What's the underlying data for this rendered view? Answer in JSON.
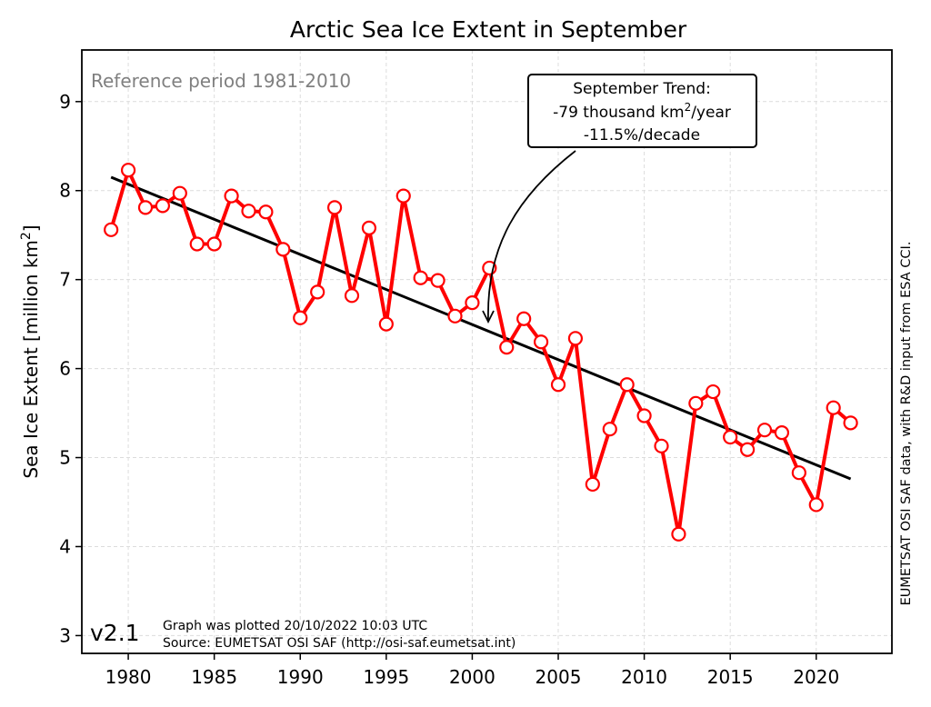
{
  "chart_data": {
    "type": "line",
    "title": "Arctic Sea Ice Extent in September",
    "xlabel": "",
    "ylabel_main": "Sea Ice Extent [million km",
    "ylabel_sup": "2",
    "ylabel_end": "]",
    "xlim": [
      1977.3,
      2024.4
    ],
    "ylim": [
      2.8,
      9.58
    ],
    "grid": true,
    "x_ticks": [
      1980,
      1985,
      1990,
      1995,
      2000,
      2005,
      2010,
      2015,
      2020
    ],
    "x_tick_labels": [
      "1980",
      "1985",
      "1990",
      "1995",
      "2000",
      "2005",
      "2010",
      "2015",
      "2020"
    ],
    "y_ticks": [
      3,
      4,
      5,
      6,
      7,
      8,
      9
    ],
    "y_tick_labels": [
      "3",
      "4",
      "5",
      "6",
      "7",
      "8",
      "9"
    ],
    "series": [
      {
        "name": "September sea ice extent",
        "color": "#ff0000",
        "marker": "open-circle",
        "x": [
          1979,
          1980,
          1981,
          1982,
          1983,
          1984,
          1985,
          1986,
          1987,
          1988,
          1989,
          1990,
          1991,
          1992,
          1993,
          1994,
          1995,
          1996,
          1997,
          1998,
          1999,
          2000,
          2001,
          2002,
          2003,
          2004,
          2005,
          2006,
          2007,
          2008,
          2009,
          2010,
          2011,
          2012,
          2013,
          2014,
          2015,
          2016,
          2017,
          2018,
          2019,
          2020,
          2021,
          2022
        ],
        "values": [
          7.56,
          8.23,
          7.81,
          7.83,
          7.97,
          7.4,
          7.4,
          7.94,
          7.77,
          7.76,
          7.34,
          6.57,
          6.86,
          7.81,
          6.82,
          7.58,
          6.5,
          7.94,
          7.02,
          6.99,
          6.59,
          6.74,
          7.13,
          6.24,
          6.56,
          6.3,
          5.82,
          6.34,
          4.7,
          5.32,
          5.82,
          5.47,
          5.13,
          4.14,
          5.61,
          5.74,
          5.23,
          5.09,
          5.31,
          5.28,
          4.83,
          4.47,
          5.56,
          5.39
        ]
      },
      {
        "name": "Linear trend",
        "color": "#000000",
        "x": [
          1979,
          2022
        ],
        "values": [
          8.15,
          4.76
        ]
      }
    ],
    "annotations": {
      "reference_period": "Reference period 1981-2010",
      "trend_box": {
        "line1": "September Trend:",
        "line2_pre": "-79 thousand km",
        "line2_sup": "2",
        "line2_post": "/year",
        "line3": "-11.5%/decade",
        "arrow_target": {
          "x": 2000.4,
          "y": 6.5
        }
      },
      "version": "v2.1",
      "plotted": "Graph was plotted 20/10/2022 10:03 UTC",
      "source": "Source: EUMETSAT OSI SAF (http://osi-saf.eumetsat.int)",
      "right_credit": "EUMETSAT OSI SAF data, with R&D input from ESA CCI."
    }
  }
}
